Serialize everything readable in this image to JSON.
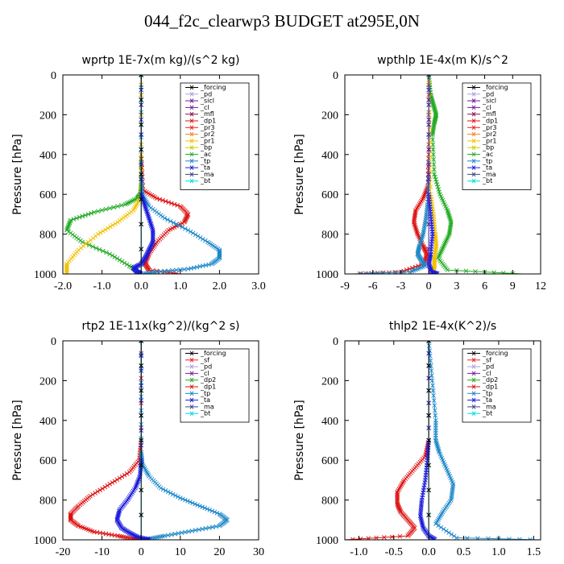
{
  "title": "044_f2c_clearwp3  BUDGET at295E,0N",
  "colors": {
    "_forcing": "#000000",
    "_pd": "#b39ddb",
    "_sicl": "#6a1b9a",
    "_cl": "#7b1fa2",
    "_mfl": "#880e4f",
    "_dp1": "#dd1111",
    "_pr3": "#ee2222",
    "_pr2": "#f58220",
    "_pr1": "#f2c000",
    "_bp": "#cccc00",
    "_ac": "#22aa22",
    "_tp": "#1e88c8",
    "_ta": "#1a1adc",
    "_ma": "#444488",
    "_bt": "#00dddd",
    "_sf": "#ee2222",
    "_dp2": "#22aa22"
  },
  "chart_data": [
    {
      "type": "line",
      "title": "wprtp  1E-7x(m kg)/(s^2 kg)",
      "ylabel": "Pressure [hPa]",
      "xlim": [
        -2.0,
        3.0
      ],
      "ylim": [
        0,
        1000
      ],
      "xticks": [
        "-2.0",
        "-1.0",
        "0.0",
        "1.0",
        "2.0",
        "3.0"
      ],
      "yticks": [
        "0",
        "200",
        "400",
        "600",
        "800",
        "1000"
      ],
      "legend_items": [
        "_forcing",
        "_pd",
        "_sicl",
        "_cl",
        "_mfl",
        "_dp1",
        "_pr3",
        "_pr2",
        "_pr1",
        "_bp",
        "_ac",
        "_tp",
        "_ta",
        "_ma",
        "_bt"
      ],
      "series": [
        {
          "name": "_ac",
          "x": [
            0,
            0,
            0,
            -0.02,
            -0.1,
            -0.4,
            -1.2,
            -1.8,
            -1.9,
            -1.5,
            -0.8,
            -0.3,
            0
          ],
          "y": [
            0,
            400,
            560,
            600,
            620,
            650,
            690,
            730,
            780,
            840,
            900,
            960,
            1000
          ]
        },
        {
          "name": "_dp1",
          "x": [
            0,
            0,
            0.05,
            0.4,
            1.0,
            1.2,
            1.1,
            0.7,
            0.4,
            0.2,
            0.1,
            0.2,
            1.0
          ],
          "y": [
            0,
            400,
            580,
            620,
            660,
            700,
            740,
            780,
            840,
            900,
            950,
            980,
            1000
          ]
        },
        {
          "name": "_pr1",
          "x": [
            0,
            0,
            -0.02,
            -0.2,
            -0.6,
            -1.1,
            -1.6,
            -1.9,
            -1.9
          ],
          "y": [
            0,
            400,
            620,
            680,
            740,
            800,
            880,
            950,
            1000
          ]
        },
        {
          "name": "_tp",
          "x": [
            0,
            0,
            0.03,
            0.2,
            0.6,
            1.2,
            1.7,
            2.0,
            2.0,
            1.8,
            1.2,
            0.4,
            0
          ],
          "y": [
            0,
            500,
            600,
            660,
            720,
            780,
            840,
            880,
            920,
            950,
            975,
            990,
            1000
          ]
        },
        {
          "name": "_ta",
          "x": [
            0,
            0,
            0.1,
            0.2,
            0.3,
            0.3,
            0.2,
            0.1,
            0,
            -0.2,
            -0.1,
            0
          ],
          "y": [
            0,
            600,
            660,
            720,
            780,
            840,
            880,
            920,
            950,
            970,
            990,
            1000
          ]
        },
        {
          "name": "_bt",
          "x": [
            0,
            0
          ],
          "y": [
            0,
            1000
          ]
        },
        {
          "name": "_forcing",
          "x": [
            0,
            0
          ],
          "y": [
            0,
            1000
          ]
        }
      ]
    },
    {
      "type": "line",
      "title": "wpthlp  1E-4x(m K)/s^2",
      "ylabel": "Pressure [hPa]",
      "xlim": [
        -9,
        12
      ],
      "ylim": [
        0,
        1000
      ],
      "xticks": [
        "-9",
        "-6",
        "-3",
        "0",
        "3",
        "6",
        "9",
        "12"
      ],
      "yticks": [
        "0",
        "200",
        "400",
        "600",
        "800",
        "1000"
      ],
      "legend_items": [
        "_forcing",
        "_pd",
        "_sicl",
        "_cl",
        "_mfl",
        "_dp1",
        "_pr3",
        "_pr2",
        "_pr1",
        "_bp",
        "_ac",
        "_tp",
        "_ta",
        "_ma",
        "_bt"
      ],
      "series": [
        {
          "name": "_ac",
          "x": [
            0,
            0.2,
            0.5,
            0.8,
            0.6,
            0.4,
            0.6,
            1.2,
            2.0,
            2.4,
            2.2,
            1.6,
            1.0,
            2.0,
            10
          ],
          "y": [
            0,
            100,
            150,
            200,
            240,
            300,
            500,
            600,
            680,
            740,
            800,
            860,
            920,
            980,
            1000
          ]
        },
        {
          "name": "_dp1",
          "x": [
            0,
            0,
            -0.1,
            -0.6,
            -1.4,
            -1.6,
            -1.2,
            -0.6,
            -0.2,
            -0.5,
            -3,
            -8
          ],
          "y": [
            0,
            400,
            560,
            620,
            680,
            740,
            800,
            860,
            900,
            950,
            990,
            1000
          ]
        },
        {
          "name": "_tp",
          "x": [
            0,
            0,
            -0.1,
            -0.3,
            -0.6,
            -1.0,
            -1.2,
            -0.8,
            -0.4,
            -2,
            -8
          ],
          "y": [
            0,
            500,
            640,
            720,
            800,
            860,
            900,
            930,
            960,
            990,
            1000
          ]
        },
        {
          "name": "_pr1",
          "x": [
            0,
            0.1,
            0.2,
            0.5,
            0.7,
            0.8,
            0.6,
            0.6,
            0.5
          ],
          "y": [
            0,
            300,
            600,
            700,
            800,
            860,
            920,
            960,
            1000
          ]
        },
        {
          "name": "_ta",
          "x": [
            0,
            0,
            0.2,
            0.4,
            0.2,
            0,
            0.3,
            1.0
          ],
          "y": [
            0,
            600,
            700,
            800,
            900,
            950,
            990,
            1000
          ]
        },
        {
          "name": "_bt",
          "x": [
            0,
            0
          ],
          "y": [
            0,
            1000
          ]
        },
        {
          "name": "_sicl",
          "x": [
            0,
            0
          ],
          "y": [
            0,
            1000
          ]
        }
      ]
    },
    {
      "type": "line",
      "title": "rtp2  1E-11x(kg^2)/(kg^2 s)",
      "ylabel": "Pressure [hPa]",
      "xlim": [
        -20,
        30
      ],
      "ylim": [
        0,
        1000
      ],
      "xticks": [
        "-20",
        "-10",
        "0",
        "10",
        "20",
        "30"
      ],
      "yticks": [
        "0",
        "200",
        "400",
        "600",
        "800",
        "1000"
      ],
      "legend_items": [
        "_forcing",
        "_sf",
        "_pd",
        "_cl",
        "_dp2",
        "_dp1",
        "_tp",
        "_ta",
        "_ma",
        "_bt"
      ],
      "series": [
        {
          "name": "_dp1",
          "x": [
            0,
            0,
            -0.5,
            -3,
            -8,
            -13,
            -16,
            -18,
            -18,
            -16,
            -12,
            -6,
            -2,
            0
          ],
          "y": [
            0,
            500,
            600,
            660,
            720,
            780,
            830,
            870,
            900,
            930,
            960,
            980,
            995,
            1000
          ]
        },
        {
          "name": "_tp",
          "x": [
            0,
            0,
            0.3,
            2,
            5,
            10,
            15,
            20,
            22,
            20,
            13,
            6,
            2,
            0
          ],
          "y": [
            0,
            560,
            620,
            680,
            740,
            790,
            830,
            870,
            900,
            930,
            955,
            980,
            995,
            1000
          ]
        },
        {
          "name": "_ta",
          "x": [
            0,
            0,
            -0.3,
            -1.5,
            -3.5,
            -5.5,
            -6.2,
            -5,
            -3,
            -1,
            2,
            0
          ],
          "y": [
            0,
            600,
            680,
            740,
            800,
            850,
            900,
            940,
            965,
            985,
            998,
            1000
          ]
        },
        {
          "name": "_bt",
          "x": [
            0,
            0
          ],
          "y": [
            0,
            1000
          ]
        },
        {
          "name": "_forcing",
          "x": [
            0,
            0
          ],
          "y": [
            0,
            1000
          ]
        }
      ]
    },
    {
      "type": "line",
      "title": "thlp2  1E-4x(K^2)/s",
      "ylabel": "Pressure [hPa]",
      "xlim": [
        -1.2,
        1.6
      ],
      "ylim": [
        0,
        1000
      ],
      "xticks": [
        "-1.0",
        "-0.5",
        "0.0",
        "0.5",
        "1.0",
        "1.5"
      ],
      "yticks": [
        "0",
        "200",
        "400",
        "600",
        "800",
        "1000"
      ],
      "legend_items": [
        "_forcing",
        "_sf",
        "_pd",
        "_cl",
        "_dp2",
        "_dp1",
        "_tp",
        "_ta",
        "_ma",
        "_bt"
      ],
      "series": [
        {
          "name": "_dp1",
          "x": [
            0,
            0,
            -0.05,
            -0.2,
            -0.35,
            -0.45,
            -0.45,
            -0.4,
            -0.3,
            -0.2,
            -0.3,
            -1.2
          ],
          "y": [
            0,
            500,
            580,
            640,
            700,
            760,
            820,
            860,
            900,
            940,
            980,
            1000
          ]
        },
        {
          "name": "_tp",
          "x": [
            0,
            0.05,
            0.1,
            0.1,
            0.15,
            0.25,
            0.35,
            0.32,
            0.2,
            0.1,
            0.4,
            1.6
          ],
          "y": [
            0,
            200,
            400,
            500,
            560,
            640,
            720,
            800,
            860,
            920,
            990,
            1000
          ]
        },
        {
          "name": "_ta",
          "x": [
            0,
            0,
            -0.02,
            -0.05,
            -0.1,
            -0.12,
            -0.08,
            0,
            0.1
          ],
          "y": [
            0,
            500,
            600,
            700,
            800,
            880,
            940,
            980,
            1000
          ]
        },
        {
          "name": "_bt",
          "x": [
            0,
            0
          ],
          "y": [
            0,
            1000
          ]
        },
        {
          "name": "_forcing",
          "x": [
            0,
            0
          ],
          "y": [
            0,
            1000
          ]
        }
      ]
    }
  ]
}
